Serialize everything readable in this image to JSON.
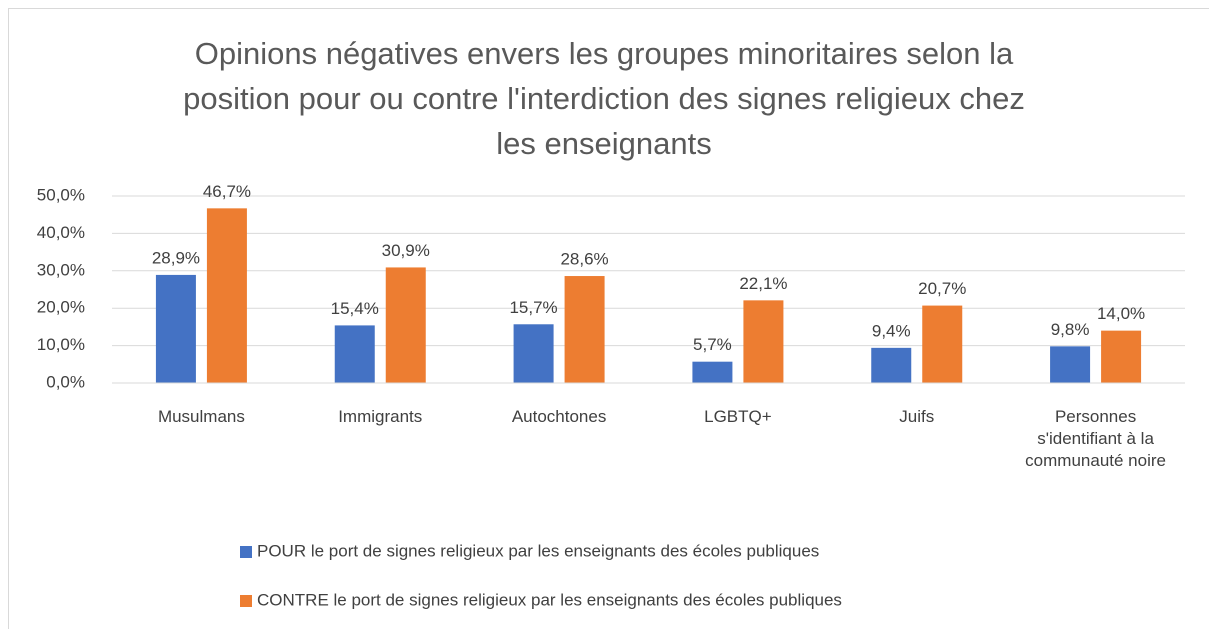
{
  "chart_data": {
    "type": "bar",
    "title": [
      "Opinions négatives envers les groupes minoritaires selon la",
      "position pour ou contre l'interdiction des signes religieux chez",
      "les enseignants"
    ],
    "categories": [
      "Musulmans",
      "Immigrants",
      "Autochtones",
      "LGBTQ+",
      "Juifs",
      "Personnes s'identifiant à la communauté noire"
    ],
    "series": [
      {
        "name": "POUR le port de signes religieux par les enseignants des écoles publiques",
        "color": "#4472c4",
        "values": [
          28.9,
          15.4,
          15.7,
          5.7,
          9.4,
          9.8
        ],
        "value_labels": [
          "28,9%",
          "15,4%",
          "15,7%",
          "5,7%",
          "9,4%",
          "9,8%"
        ]
      },
      {
        "name": "CONTRE le port de signes religieux par les enseignants des écoles publiques",
        "color": "#ed7d31",
        "values": [
          46.7,
          30.9,
          28.6,
          22.1,
          20.7,
          14.0
        ],
        "value_labels": [
          "46,7%",
          "30,9%",
          "28,6%",
          "22,1%",
          "20,7%",
          "14,0%"
        ]
      }
    ],
    "ylim": [
      0,
      50
    ],
    "yticks": [
      {
        "value": 0,
        "label": "0,0%"
      },
      {
        "value": 10,
        "label": "10,0%"
      },
      {
        "value": 20,
        "label": "20,0%"
      },
      {
        "value": 30,
        "label": "30,0%"
      },
      {
        "value": 40,
        "label": "40,0%"
      },
      {
        "value": 50,
        "label": "50,0%"
      }
    ],
    "grid": true,
    "legend": "bottom"
  }
}
